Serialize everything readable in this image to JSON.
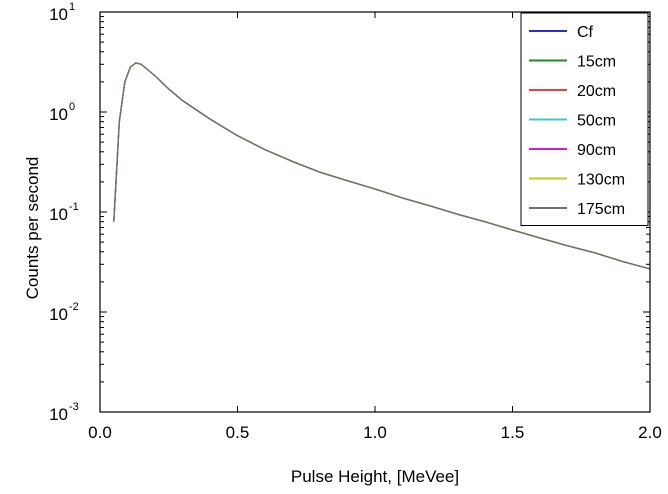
{
  "chart_data": {
    "type": "line",
    "title": "",
    "xlabel": "Pulse Height, [MeVee]",
    "ylabel": "Counts per second",
    "xlim": [
      0.0,
      2.0
    ],
    "ylim": [
      0.001,
      10
    ],
    "yscale": "log",
    "grid": false,
    "legend_position": "top-right",
    "x_ticks": [
      "0.0",
      "0.5",
      "1.0",
      "1.5",
      "2.0"
    ],
    "y_ticks": [
      {
        "base": "10",
        "exp": "1"
      },
      {
        "base": "10",
        "exp": "0"
      },
      {
        "base": "10",
        "exp": "-1"
      },
      {
        "base": "10",
        "exp": "-2"
      },
      {
        "base": "10",
        "exp": "-3"
      }
    ],
    "x": [
      0.05,
      0.07,
      0.09,
      0.11,
      0.13,
      0.15,
      0.2,
      0.25,
      0.3,
      0.4,
      0.5,
      0.6,
      0.7,
      0.8,
      0.9,
      1.0,
      1.1,
      1.2,
      1.3,
      1.4,
      1.5,
      1.6,
      1.7,
      1.8,
      1.9,
      2.0
    ],
    "series": [
      {
        "name": "Cf",
        "color": "#2b2bd4",
        "values": [
          0.08,
          0.8,
          2.0,
          2.8,
          3.1,
          3.0,
          2.3,
          1.7,
          1.3,
          0.85,
          0.58,
          0.42,
          0.32,
          0.25,
          0.205,
          0.17,
          0.138,
          0.115,
          0.095,
          0.08,
          0.066,
          0.055,
          0.046,
          0.039,
          0.032,
          0.027
        ]
      },
      {
        "name": "15cm",
        "color": "#1e8c1e",
        "values": [
          0.08,
          0.8,
          2.0,
          2.8,
          3.1,
          3.0,
          2.3,
          1.7,
          1.3,
          0.85,
          0.58,
          0.42,
          0.32,
          0.25,
          0.205,
          0.17,
          0.138,
          0.115,
          0.095,
          0.08,
          0.066,
          0.055,
          0.046,
          0.039,
          0.032,
          0.027
        ]
      },
      {
        "name": "20cm",
        "color": "#ee4040",
        "values": [
          0.08,
          0.8,
          2.0,
          2.8,
          3.1,
          3.0,
          2.3,
          1.7,
          1.3,
          0.85,
          0.58,
          0.42,
          0.32,
          0.25,
          0.205,
          0.17,
          0.138,
          0.115,
          0.095,
          0.08,
          0.066,
          0.055,
          0.046,
          0.039,
          0.032,
          0.027
        ]
      },
      {
        "name": "50cm",
        "color": "#3cc8c8",
        "values": [
          0.08,
          0.8,
          2.0,
          2.8,
          3.1,
          3.0,
          2.3,
          1.7,
          1.3,
          0.85,
          0.58,
          0.42,
          0.32,
          0.25,
          0.205,
          0.17,
          0.138,
          0.115,
          0.095,
          0.08,
          0.066,
          0.055,
          0.046,
          0.039,
          0.032,
          0.027
        ]
      },
      {
        "name": "90cm",
        "color": "#d21ed2",
        "values": [
          0.08,
          0.8,
          2.0,
          2.8,
          3.1,
          3.0,
          2.3,
          1.7,
          1.3,
          0.85,
          0.58,
          0.42,
          0.32,
          0.25,
          0.205,
          0.17,
          0.138,
          0.115,
          0.095,
          0.08,
          0.066,
          0.055,
          0.046,
          0.039,
          0.032,
          0.027
        ]
      },
      {
        "name": "130cm",
        "color": "#c8c814",
        "values": [
          0.08,
          0.8,
          2.0,
          2.8,
          3.1,
          3.0,
          2.3,
          1.7,
          1.3,
          0.85,
          0.58,
          0.42,
          0.32,
          0.25,
          0.205,
          0.17,
          0.138,
          0.115,
          0.095,
          0.08,
          0.066,
          0.055,
          0.046,
          0.039,
          0.032,
          0.027
        ]
      },
      {
        "name": "175cm",
        "color": "#6e6e6e",
        "values": [
          0.08,
          0.8,
          2.0,
          2.8,
          3.1,
          3.0,
          2.3,
          1.7,
          1.3,
          0.85,
          0.58,
          0.42,
          0.32,
          0.25,
          0.205,
          0.17,
          0.138,
          0.115,
          0.095,
          0.08,
          0.066,
          0.055,
          0.046,
          0.039,
          0.032,
          0.027
        ]
      }
    ]
  }
}
